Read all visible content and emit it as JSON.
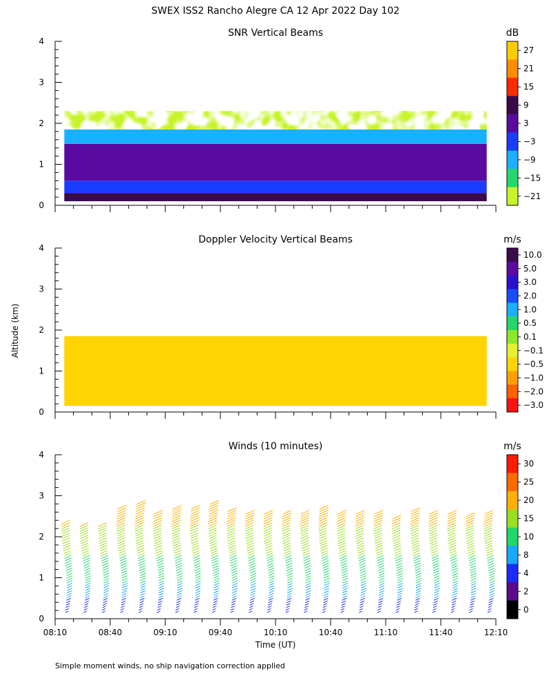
{
  "figure": {
    "title": "SWEX ISS2 Rancho Alegre CA  12 Apr 2022 Day 102",
    "y_axis_label": "Altitude (km)",
    "x_axis_label": "Time (UT)",
    "footnote": "Simple moment winds, no ship navigation correction applied"
  },
  "chart_data": [
    {
      "type": "heatmap",
      "title": "SNR Vertical Beams",
      "ylim": [
        0,
        4
      ],
      "yticks": [
        0,
        1,
        2,
        3,
        4
      ],
      "xlim": [
        "08:10",
        "12:10"
      ],
      "colorbar": {
        "unit": "dB",
        "labels": [
          "27",
          "21",
          "15",
          "9",
          "3",
          "−3",
          "−9",
          "−15",
          "−21"
        ],
        "colors": [
          "#ffcc00",
          "#ff8c00",
          "#ff2a00",
          "#3a0a4a",
          "#5a0aa0",
          "#1a3cff",
          "#18b0ff",
          "#23d86b",
          "#c6f42a"
        ]
      },
      "layers": [
        {
          "alt_range": [
            0.1,
            0.3
          ],
          "snr_db": 9
        },
        {
          "alt_range": [
            0.3,
            0.6
          ],
          "snr_db": -6
        },
        {
          "alt_range": [
            0.6,
            1.5
          ],
          "snr_db": 0
        },
        {
          "alt_range": [
            1.5,
            1.85
          ],
          "snr_db": -12
        },
        {
          "alt_range": [
            1.85,
            2.3
          ],
          "snr_db": -20
        }
      ]
    },
    {
      "type": "heatmap",
      "title": "Doppler Velocity Vertical Beams",
      "ylim": [
        0,
        4
      ],
      "yticks": [
        0,
        1,
        2,
        3,
        4
      ],
      "xlim": [
        "08:10",
        "12:10"
      ],
      "colorbar": {
        "unit": "m/s",
        "labels": [
          "10.0",
          "5.0",
          "3.0",
          "2.0",
          "1.0",
          "0.5",
          "0.1",
          "−0.1",
          "−0.5",
          "−1.0",
          "−2.0",
          "−3.0"
        ],
        "colors": [
          "#3a0a4a",
          "#5a0aa0",
          "#2a10d0",
          "#1a4cff",
          "#18b0ff",
          "#23d86b",
          "#8ce82a",
          "#e6f030",
          "#ffd400",
          "#ffa000",
          "#ff6000",
          "#ff1010"
        ]
      },
      "layers": [
        {
          "alt_range": [
            0.15,
            1.85
          ],
          "velocity_ms": -0.5
        }
      ]
    },
    {
      "type": "scatter",
      "title": "Winds (10 minutes)",
      "ylim": [
        0,
        4
      ],
      "yticks": [
        0,
        1,
        2,
        3,
        4
      ],
      "xlim": [
        "08:10",
        "12:10"
      ],
      "xticks": [
        "08:10",
        "08:40",
        "09:10",
        "09:40",
        "10:10",
        "10:40",
        "11:10",
        "11:40",
        "12:10"
      ],
      "colorbar": {
        "unit": "m/s",
        "labels": [
          "30",
          "25",
          "20",
          "15",
          "10",
          "8",
          "4",
          "2",
          "0"
        ],
        "colors": [
          "#ff1a00",
          "#ff6a00",
          "#ffb000",
          "#9ae020",
          "#1fd86b",
          "#18a8ff",
          "#1a2cff",
          "#5a0a8a",
          "#000000"
        ]
      },
      "profile_times": [
        "08:15",
        "08:25",
        "08:35",
        "08:45",
        "08:55",
        "09:05",
        "09:15",
        "09:25",
        "09:35",
        "09:45",
        "09:55",
        "10:05",
        "10:15",
        "10:25",
        "10:35",
        "10:45",
        "10:55",
        "11:05",
        "11:15",
        "11:25",
        "11:35",
        "11:45",
        "11:55",
        "12:05"
      ],
      "profile_tops_km": [
        2.35,
        2.25,
        2.3,
        2.7,
        2.8,
        2.6,
        2.7,
        2.7,
        2.8,
        2.65,
        2.6,
        2.6,
        2.55,
        2.6,
        2.7,
        2.6,
        2.55,
        2.6,
        2.45,
        2.65,
        2.55,
        2.55,
        2.5,
        2.6
      ],
      "speed_by_alt": [
        {
          "alt_km": 0.2,
          "speed_ms": 4
        },
        {
          "alt_km": 0.5,
          "speed_ms": 8
        },
        {
          "alt_km": 1.0,
          "speed_ms": 11
        },
        {
          "alt_km": 1.5,
          "speed_ms": 15
        },
        {
          "alt_km": 2.0,
          "speed_ms": 18
        },
        {
          "alt_km": 2.5,
          "speed_ms": 22
        }
      ]
    }
  ]
}
